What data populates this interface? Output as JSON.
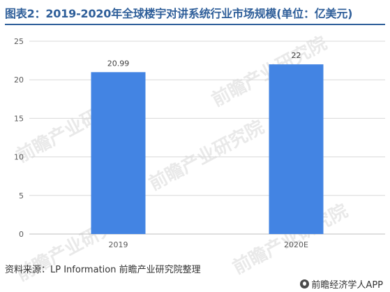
{
  "title": "图表2：2019-2020年全球楼宇对讲系统行业市场规模(单位：亿美元)",
  "source": "资料来源：LP Information 前瞻产业研究院整理",
  "logo_text": "前瞻经济学人APP",
  "watermark_text": "前瞻产业研究院",
  "colors": {
    "bar": "#4384e3",
    "title": "#2f5f9a",
    "grid": "#d9d9d9"
  },
  "chart_data": {
    "type": "bar",
    "categories": [
      "2019",
      "2020E"
    ],
    "values": [
      20.99,
      22
    ],
    "data_labels": [
      "20.99",
      "22"
    ],
    "title": "图表2：2019-2020年全球楼宇对讲系统行业市场规模(单位：亿美元)",
    "xlabel": "",
    "ylabel": "",
    "ylim": [
      0,
      25
    ],
    "yticks": [
      0,
      5,
      10,
      15,
      20,
      25
    ],
    "grid": true,
    "legend": "none"
  }
}
